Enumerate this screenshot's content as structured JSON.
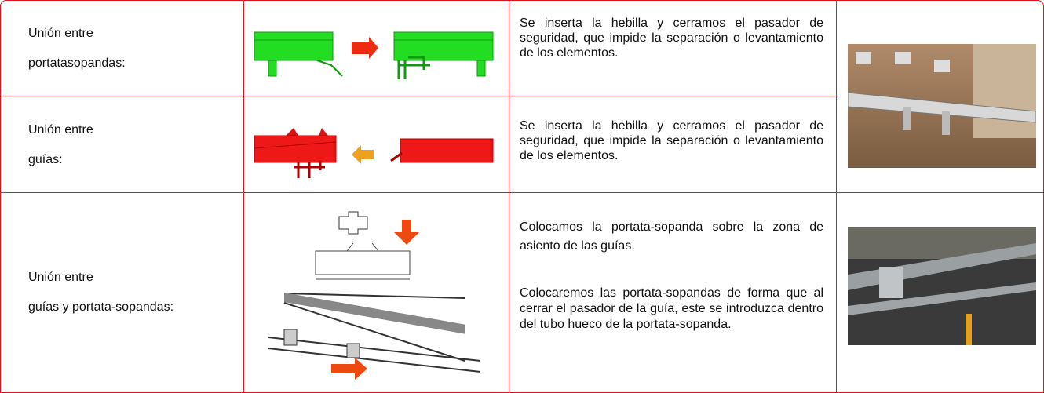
{
  "table": {
    "rows": [
      {
        "label": [
          "Unión entre",
          "portatasopandas:"
        ],
        "description": [
          "Se inserta la hebilla y cerramos el pasador de seguridad, que impide la separación o levantamiento de los elementos."
        ]
      },
      {
        "label": [
          "Unión entre",
          "guías:"
        ],
        "description": [
          "Se inserta la hebilla y cerramos el pasador de seguridad, que impide la separación o levantamiento de los elementos."
        ]
      },
      {
        "label": [
          "Unión entre",
          "guías y portata-sopandas:"
        ],
        "description": [
          "Colocamos la portata-sopanda sobre la zona de asiento de las guías.",
          "Colocaremos las portata-sopandas de forma que al cerrar el pasador de la guía, este se introduzca dentro del tubo hueco de la portata-sopanda."
        ]
      }
    ]
  }
}
